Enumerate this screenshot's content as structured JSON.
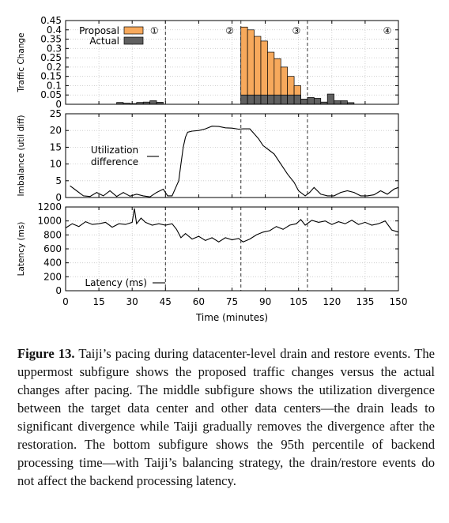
{
  "chart_data": [
    {
      "type": "bar",
      "ylabel": "Traffic Change",
      "ylim": [
        0,
        0.45
      ],
      "yticks": [
        "0",
        "0.05",
        "0.1",
        "0.15",
        "0.2",
        "0.25",
        "0.3",
        "0.35",
        "0.4",
        "0.45"
      ],
      "xlim": [
        0,
        150
      ],
      "bar_width": 3,
      "legend": {
        "position": "top-left",
        "entries": [
          "Proposal",
          "Actual"
        ]
      },
      "phase_lines": [
        45,
        79,
        109
      ],
      "phase_labels": [
        {
          "x": 40,
          "text": "①"
        },
        {
          "x": 74,
          "text": "②"
        },
        {
          "x": 104,
          "text": "③"
        },
        {
          "x": 145,
          "text": "④"
        }
      ],
      "series": [
        {
          "name": "Proposal",
          "color": "#f7a95c",
          "x": [
            79,
            82,
            85,
            88,
            91,
            94,
            97,
            100,
            103
          ],
          "values": [
            0.415,
            0.4,
            0.365,
            0.34,
            0.28,
            0.245,
            0.2,
            0.15,
            0.1
          ]
        },
        {
          "name": "Actual",
          "color": "#606060",
          "x": [
            23,
            26,
            29,
            32,
            35,
            38,
            41,
            79,
            82,
            85,
            88,
            91,
            94,
            97,
            100,
            103,
            106,
            109,
            112,
            115,
            118,
            121,
            124,
            127
          ],
          "values": [
            0.01,
            0.006,
            0.004,
            0.01,
            0.012,
            0.019,
            0.011,
            0.05,
            0.05,
            0.05,
            0.05,
            0.05,
            0.05,
            0.05,
            0.05,
            0.05,
            0.028,
            0.037,
            0.032,
            0.012,
            0.055,
            0.019,
            0.019,
            0.009
          ]
        }
      ]
    },
    {
      "type": "line",
      "ylabel": "Imbalance (util diff)",
      "ylim": [
        0,
        25
      ],
      "yticks": [
        "0",
        "5",
        "10",
        "15",
        "20",
        "25"
      ],
      "xlim": [
        0,
        150
      ],
      "legend": {
        "position": "left",
        "entries": [
          "Utilization difference"
        ]
      },
      "phase_lines": [
        45,
        79,
        109
      ],
      "series": [
        {
          "name": "Utilization difference",
          "x": [
            2,
            5,
            8,
            11,
            14,
            17,
            20,
            23,
            26,
            29,
            32,
            35,
            38,
            41,
            44,
            46,
            48,
            50,
            51,
            52,
            53,
            54,
            55,
            57,
            60,
            63,
            66,
            69,
            72,
            75,
            78,
            80,
            83,
            85,
            87,
            89,
            91,
            94,
            97,
            100,
            103,
            105,
            107,
            108,
            110,
            112,
            115,
            118,
            121,
            124,
            127,
            130,
            133,
            136,
            139,
            142,
            145,
            148,
            150
          ],
          "values": [
            3.5,
            2,
            0.5,
            0.3,
            1.5,
            0.5,
            2,
            0.3,
            1.5,
            0.4,
            1,
            0.5,
            0.2,
            1.5,
            2.5,
            0.5,
            0.5,
            3.5,
            5,
            10,
            15,
            18,
            19.5,
            19.8,
            20,
            20.5,
            21.3,
            21.2,
            20.8,
            20.7,
            20.4,
            20.5,
            20.5,
            19,
            17.5,
            15.5,
            14.5,
            13,
            10,
            7,
            4.5,
            2,
            1,
            0.5,
            1.5,
            3,
            1,
            0.5,
            0.5,
            1.5,
            2,
            1.5,
            0.5,
            0.5,
            0.8,
            2,
            1,
            2.5,
            3
          ]
        }
      ]
    },
    {
      "type": "line",
      "ylabel": "Latency (ms)",
      "xlabel": "Time (minutes)",
      "ylim": [
        0,
        1200
      ],
      "yticks": [
        "0",
        "200",
        "400",
        "600",
        "800",
        "1000",
        "1200"
      ],
      "xlim": [
        0,
        150
      ],
      "xticks": [
        0,
        15,
        30,
        45,
        60,
        75,
        90,
        105,
        120,
        135,
        150
      ],
      "legend": {
        "position": "bottom-left",
        "entries": [
          "Latency (ms)"
        ]
      },
      "phase_lines": [
        45,
        79,
        109
      ],
      "series": [
        {
          "name": "Latency (ms)",
          "x": [
            0,
            3,
            6,
            9,
            12,
            15,
            18,
            21,
            24,
            27,
            30,
            31,
            32,
            34,
            36,
            39,
            42,
            45,
            48,
            50,
            52,
            54,
            57,
            60,
            63,
            66,
            69,
            72,
            75,
            78,
            80,
            83,
            86,
            89,
            92,
            95,
            98,
            101,
            104,
            106,
            108,
            111,
            114,
            117,
            120,
            123,
            126,
            129,
            132,
            135,
            138,
            141,
            144,
            147,
            150
          ],
          "values": [
            900,
            960,
            920,
            990,
            950,
            960,
            980,
            910,
            960,
            950,
            980,
            1180,
            960,
            1040,
            980,
            940,
            960,
            940,
            960,
            880,
            760,
            820,
            740,
            780,
            720,
            760,
            700,
            760,
            730,
            750,
            700,
            740,
            800,
            840,
            860,
            920,
            880,
            940,
            960,
            1020,
            940,
            1010,
            980,
            1000,
            950,
            990,
            960,
            1010,
            950,
            980,
            940,
            960,
            1000,
            870,
            840
          ]
        }
      ]
    }
  ],
  "caption": {
    "label": "Figure 13.",
    "text": "Taiji’s pacing during datacenter-level drain and restore events. The uppermost subfigure shows the proposed traffic changes versus the actual changes after pacing. The middle subfigure shows the utilization divergence between the target data center and other data centers—the drain leads to significant divergence while Taiji gradually removes the divergence after the restoration. The bottom subfigure shows the 95th percentile of backend processing time—with Taiji’s balancing strategy, the drain/restore events do not affect the backend processing latency."
  }
}
